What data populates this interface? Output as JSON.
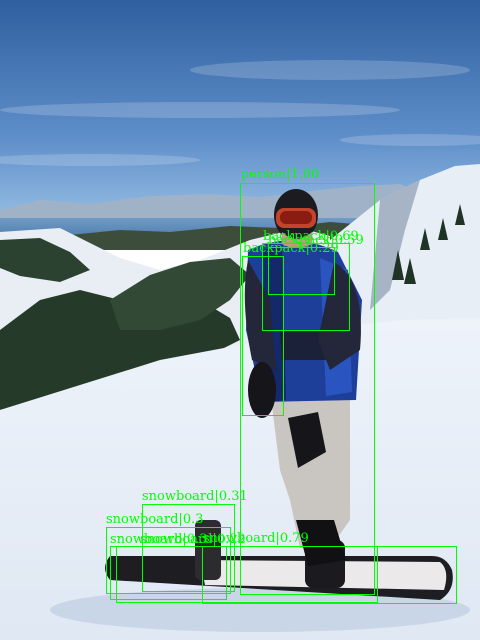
{
  "colors": {
    "box": "#00ff00",
    "sky_top": "#2f5f9e",
    "sky_bottom": "#8fb8df",
    "snow": "#f3f6fb",
    "jacket": "#1d3f9a"
  },
  "detections": [
    {
      "key": "person",
      "label": "person|1.00"
    },
    {
      "key": "backpack-overlap",
      "label": "backpack|0.69"
    },
    {
      "key": "backpack-upper",
      "label": "backpack|0.59"
    },
    {
      "key": "backpack",
      "label": "backpack|0.29"
    },
    {
      "key": "snowboard-top",
      "label": "snowboard|0.31"
    },
    {
      "key": "snowboard-mid",
      "label": "snowboard|0.3"
    },
    {
      "key": "snowboard-low",
      "label": "snowboard|0.3"
    },
    {
      "key": "snowboard-center",
      "label": "snowboard|0.22"
    },
    {
      "key": "snowboard-right",
      "label": "snowboard|0.79"
    }
  ]
}
